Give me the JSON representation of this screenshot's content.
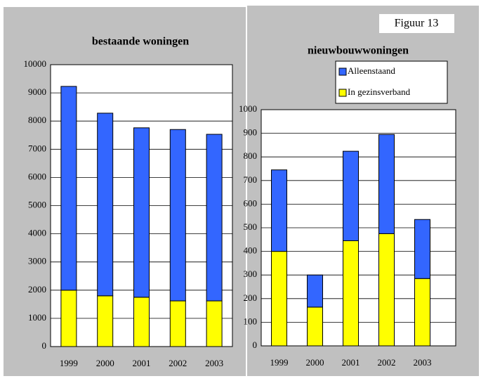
{
  "label": "Figuur 13",
  "chart_data": [
    {
      "type": "stacked_bar",
      "title": "bestaande woningen",
      "categories": [
        "1999",
        "2000",
        "2001",
        "2002",
        "2003"
      ],
      "series": [
        {
          "name": "In gezinsverband",
          "color": "#ffff00",
          "values": [
            2000,
            1800,
            1750,
            1620,
            1620
          ]
        },
        {
          "name": "Alleenstaand",
          "color": "#3366ff",
          "values": [
            7230,
            6480,
            6010,
            6080,
            5910
          ]
        }
      ],
      "ylim": [
        0,
        10000
      ],
      "yticks": [
        0,
        1000,
        2000,
        3000,
        4000,
        5000,
        6000,
        7000,
        8000,
        9000,
        10000
      ],
      "grid": true,
      "legend": false
    },
    {
      "type": "stacked_bar",
      "title": "nieuwbouwwoningen",
      "categories": [
        "1999",
        "2000",
        "2001",
        "2002",
        "2003"
      ],
      "series": [
        {
          "name": "In gezinsverband",
          "color": "#ffff00",
          "values": [
            400,
            164,
            445,
            475,
            285
          ]
        },
        {
          "name": "Alleenstaand",
          "color": "#3366ff",
          "values": [
            345,
            136,
            379,
            420,
            250
          ]
        }
      ],
      "ylim": [
        0,
        1000
      ],
      "yticks": [
        0,
        100,
        200,
        300,
        400,
        500,
        600,
        700,
        800,
        900,
        1000
      ],
      "grid": true,
      "legend": "top-right"
    }
  ]
}
